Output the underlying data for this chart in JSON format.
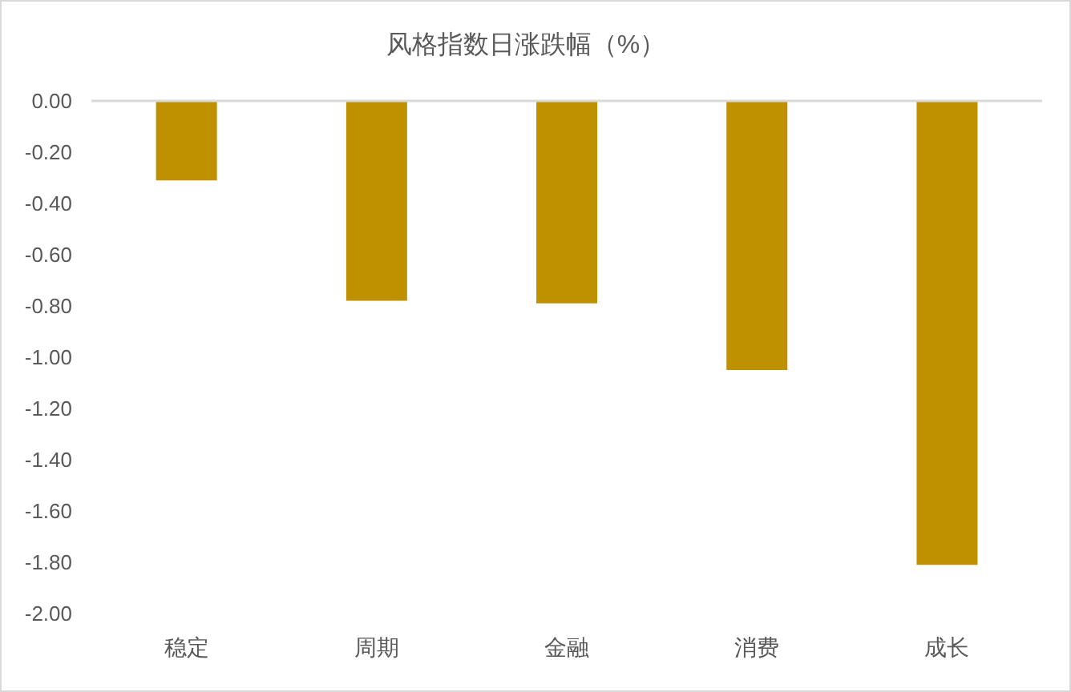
{
  "chart_data": {
    "type": "bar",
    "title": "风格指数日涨跌幅（%）",
    "categories": [
      "稳定",
      "周期",
      "金融",
      "消费",
      "成长"
    ],
    "values": [
      -0.31,
      -0.78,
      -0.79,
      -1.05,
      -1.81
    ],
    "color": "#bf9000",
    "ylim": [
      -2,
      0
    ],
    "yticks": [
      {
        "value": 0,
        "label": "0.00"
      },
      {
        "value": -0.2,
        "label": "-0.20"
      },
      {
        "value": -0.4,
        "label": "-0.40"
      },
      {
        "value": -0.6,
        "label": "-0.60"
      },
      {
        "value": -0.8,
        "label": "-0.80"
      },
      {
        "value": -1,
        "label": "-1.00"
      },
      {
        "value": -1.2,
        "label": "-1.20"
      },
      {
        "value": -1.4,
        "label": "-1.40"
      },
      {
        "value": -1.6,
        "label": "-1.60"
      },
      {
        "value": -1.8,
        "label": "-1.80"
      },
      {
        "value": -2,
        "label": "-2.00"
      }
    ]
  }
}
